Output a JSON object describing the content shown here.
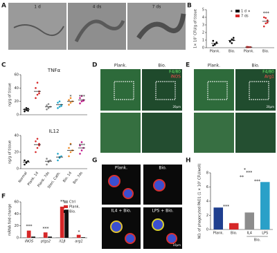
{
  "panels": {
    "A": {
      "label": "A",
      "captions": [
        "1 d",
        "4 ds",
        "7 ds"
      ]
    },
    "B": {
      "label": "B"
    },
    "C": {
      "label": "C"
    },
    "D": {
      "label": "D",
      "captions": [
        "Plank.",
        "Bio."
      ],
      "stains": [
        "F4/80",
        "iNOS"
      ],
      "scale": "20μm"
    },
    "E": {
      "label": "E",
      "captions": [
        "Plank.",
        "Bio."
      ],
      "stains": [
        "F4/80",
        "Arg1"
      ],
      "scale": "20μm"
    },
    "F": {
      "label": "F"
    },
    "G": {
      "label": "G",
      "captions": [
        "Plank.",
        "Bio.",
        "IL4 + Bio.",
        "LPS + Bio."
      ],
      "scale": "10μm"
    },
    "H": {
      "label": "H"
    }
  },
  "chart_data": [
    {
      "type": "strip",
      "y_label": "1× 10⁷ CFU/g of tissue",
      "categories": [
        "Plank.",
        "Bio.",
        "Plank.",
        "Bio."
      ],
      "points": [
        [
          0.3,
          0.5,
          0.7,
          0.9,
          0.4,
          0.6
        ],
        [
          0.8,
          1.1,
          1.3,
          0.9,
          0.6,
          1.0
        ],
        [
          0.05,
          0.1,
          0.08,
          0.12,
          0.06
        ],
        [
          2.8,
          3.2,
          3.6,
          4.0,
          3.9,
          3.3
        ]
      ],
      "values": [
        0.57,
        0.95,
        0.08,
        3.47
      ],
      "colors": [
        "#000000",
        "#000000",
        "#d62728",
        "#d62728"
      ],
      "legend": [
        {
          "name": "1 d",
          "color": "#000000"
        },
        {
          "name": "7 ds",
          "color": "#d62728"
        }
      ],
      "ylim": [
        0,
        5
      ],
      "yticks": [
        0,
        1,
        2,
        3,
        4,
        5
      ],
      "annotations": [
        "*",
        "*",
        "***"
      ]
    },
    {
      "type": "strip",
      "title": "TNFα",
      "y_label": "ng/g of tissue",
      "points": [
        [
          5,
          7,
          9,
          8,
          10,
          6
        ],
        [
          25,
          30,
          35,
          40,
          48,
          32
        ],
        [
          8,
          10,
          12,
          14,
          16
        ],
        [
          10,
          12,
          15,
          18,
          20,
          13
        ],
        [
          15,
          18,
          20,
          22,
          25
        ],
        [
          17,
          20,
          22,
          25,
          28,
          21
        ]
      ],
      "values": [
        8,
        35,
        12,
        15,
        20,
        22
      ],
      "colors": [
        "#000000",
        "#d62728",
        "#888888",
        "#1fa5c9",
        "#f08a24",
        "#c2188b"
      ],
      "ylim": [
        0,
        60
      ],
      "yticks": [
        0,
        20,
        40,
        60
      ],
      "annotations": [
        "*",
        "***"
      ]
    },
    {
      "type": "strip",
      "title": "IL12",
      "y_label": "ng/g of tissue",
      "categories": [
        "Normal",
        "Plank. 1d",
        "Plank. 7ds",
        "Steri. Cath.",
        "Bio. 1d",
        "Bio. 7ds"
      ],
      "points": [
        [
          5,
          7,
          9,
          10,
          8
        ],
        [
          20,
          25,
          30,
          33,
          36,
          28
        ],
        [
          5,
          8,
          10,
          12,
          9
        ],
        [
          10,
          13,
          15,
          18,
          14
        ],
        [
          15,
          20,
          22,
          25,
          30
        ],
        [
          18,
          22,
          25,
          28,
          32
        ]
      ],
      "values": [
        8,
        29,
        9,
        14,
        22,
        25
      ],
      "colors": [
        "#000000",
        "#d62728",
        "#888888",
        "#1fa5c9",
        "#f08a24",
        "#c2188b"
      ],
      "ylim": [
        0,
        40
      ],
      "yticks": [
        0,
        20,
        40
      ],
      "annotations": [
        "*",
        "***"
      ]
    },
    {
      "type": "bar",
      "y_label": "mRNA fold change",
      "categories": [
        "iNOS",
        "ptgs2",
        "il1β",
        "arg1"
      ],
      "series": [
        {
          "name": "Ctrl",
          "color": "#9e9e9e",
          "values": [
            1,
            1,
            1,
            1
          ]
        },
        {
          "name": "Plank.",
          "color": "#d62728",
          "values": [
            12,
            9,
            52,
            5
          ]
        },
        {
          "name": "Bio.",
          "color": "#111111",
          "values": [
            2,
            2,
            47,
            1
          ]
        }
      ],
      "ylim": [
        0,
        60
      ],
      "yticks": [
        0,
        20,
        40,
        60
      ],
      "annotations": [
        "***",
        "***",
        "**",
        "*"
      ]
    },
    {
      "type": "bar",
      "y_label": "NO. of phagocyted PAO1 (1 × 10⁵ CFU/well)",
      "categories": [
        "Plank.",
        "Bio.",
        "IL4",
        "LPS"
      ],
      "group_label": "Bio.",
      "values": [
        3.1,
        0.9,
        2.4,
        6.7
      ],
      "colors": [
        "#1f3f8f",
        "#d62728",
        "#8c8c8c",
        "#2aa0c8"
      ],
      "ylim": [
        0,
        8
      ],
      "yticks": [
        0,
        2,
        4,
        6,
        8
      ],
      "annotations": [
        "***",
        "**",
        "***",
        "***",
        "*"
      ]
    }
  ]
}
